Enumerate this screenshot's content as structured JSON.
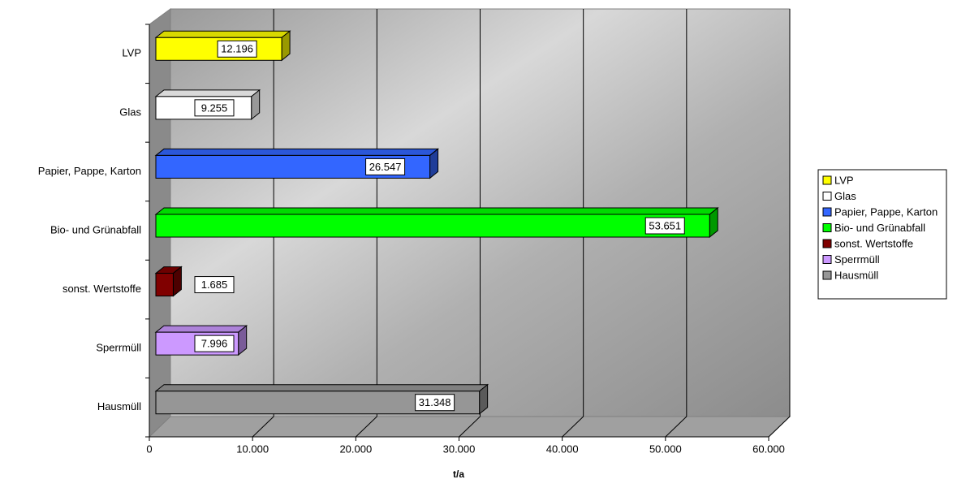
{
  "chart_data": {
    "type": "bar",
    "orientation": "horizontal",
    "xlabel": "t/a",
    "categories": [
      "LVP",
      "Glas",
      "Papier, Pappe, Karton",
      "Bio- und Grünabfall",
      "sonst. Wertstoffe",
      "Sperrmüll",
      "Hausmüll"
    ],
    "values": [
      12196,
      9255,
      26547,
      53651,
      1685,
      7996,
      31348
    ],
    "value_labels": [
      "12.196",
      "9.255",
      "26.547",
      "53.651",
      "1.685",
      "7.996",
      "31.348"
    ],
    "colors": [
      "#ffff00",
      "#ffffff",
      "#3366ff",
      "#00ff00",
      "#800000",
      "#cc99ff",
      "#969696"
    ],
    "xlim": [
      0,
      60000
    ],
    "xticks": [
      0,
      {
        "value": 10000,
        "label": "10.000"
      },
      {
        "value": 20000,
        "label": "20.000"
      },
      {
        "value": 30000,
        "label": "30.000"
      },
      {
        "value": 40000,
        "label": "40.000"
      },
      {
        "value": 50000,
        "label": "50.000"
      },
      {
        "value": 60000,
        "label": "60.000"
      }
    ],
    "grid": true,
    "legend": "right"
  }
}
